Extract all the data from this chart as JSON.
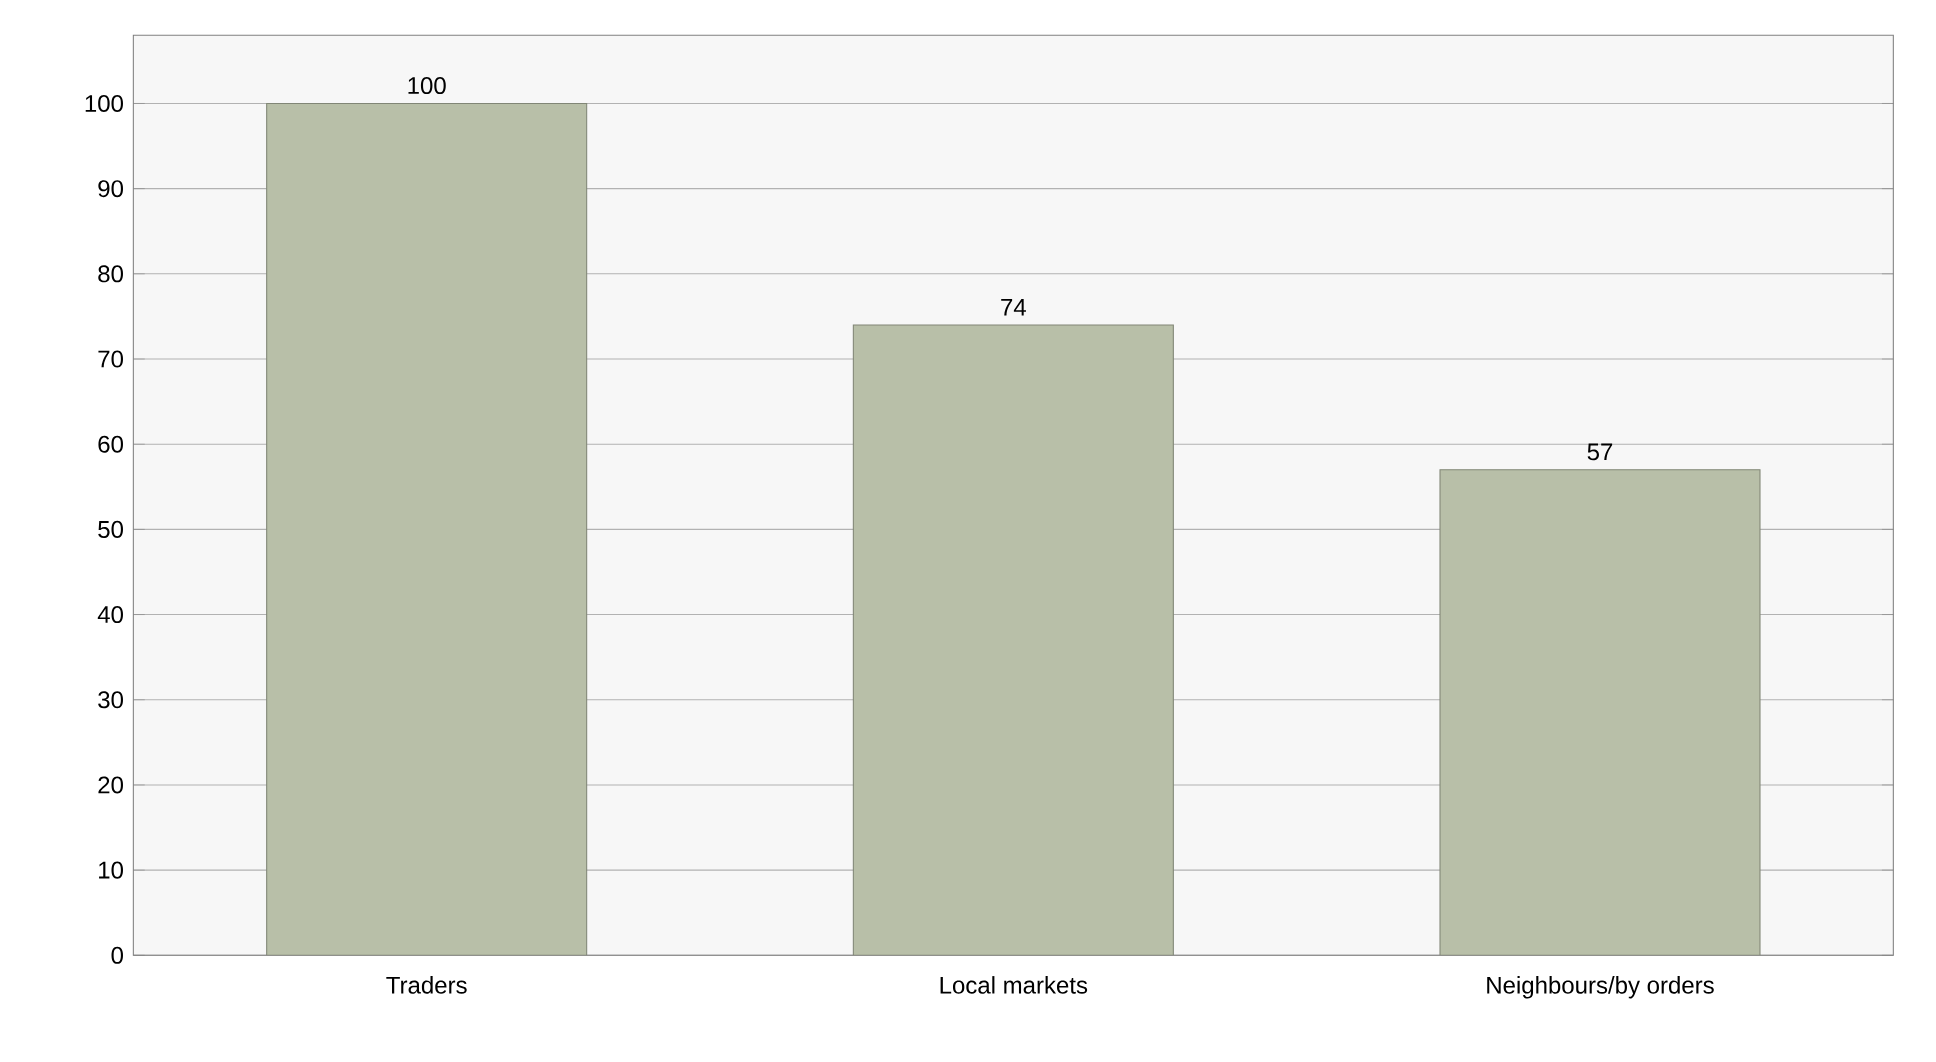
{
  "chart_data": {
    "type": "bar",
    "categories": [
      "Traders",
      "Local markets",
      "Neighbours/by orders"
    ],
    "values": [
      100,
      74,
      57
    ],
    "color": "#b8bfa8",
    "ylim": [
      0,
      108
    ],
    "yticks": [
      0,
      10,
      20,
      30,
      40,
      50,
      60,
      70,
      80,
      90,
      100
    ],
    "grid": "y",
    "data_labels": true
  }
}
